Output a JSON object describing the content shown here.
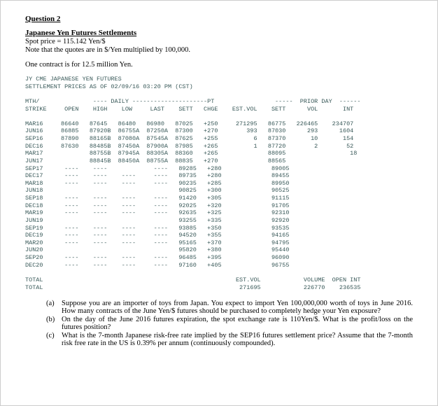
{
  "heading": "Question 2",
  "title": "Japanese Yen Futures Settlements",
  "spot_line": "Spot price = 115.142 Yen/$",
  "note_line": "Note that the quotes are in $/Yen multiplied by 100,000.",
  "contract_line": "One contract is for 12.5 million Yen.",
  "futures_header1": "JY CME JAPANESE YEN FUTURES",
  "futures_header2": "SETTLEMENT PRICES AS OF 02/09/16 03:20 PM (CST)",
  "col_header1": "MTH/               ---- DAILY ---------------------PT                 -----  PRIOR DAY  ------",
  "col_header2": "STRIKE     OPEN    HIGH    LOW     LAST    SETT   CHGE    EST.VOL    SETT      VOL       INT",
  "rows": [
    "MAR16     86640   87645   86480   86980   87025   +250     271295   86775   226465    234707",
    "JUN16     86885   87920B  86755A  87250A  87300   +270        393   87030      293      1604",
    "SEP16     87890   88165B  87080A  87545A  87625   +255          6   87370       10       154",
    "DEC16     87630   88485B  87450A  87900A  87985   +265          1   87720        2        52",
    "MAR17             88755B  87945A  88305A  88360   +265              88095                  18",
    "JUN17             88845B  88450A  88755A  88835   +270              88565",
    "SEP17      ----    ----             ----   89285   +280              89005",
    "DEC17      ----    ----    ----     ----   89735   +280              89455",
    "MAR18      ----    ----    ----     ----   90235   +285              89950",
    "JUN18                                      90825   +300              90525",
    "SEP18      ----    ----    ----     ----   91420   +305              91115",
    "DEC18      ----    ----    ----     ----   92025   +320              91705",
    "MAR19      ----    ----    ----     ----   92635   +325              92310",
    "JUN19                                      93255   +335              92920",
    "SEP19      ----    ----    ----     ----   93885   +350              93535",
    "DEC19      ----    ----    ----     ----   94520   +355              94165",
    "MAR20      ----    ----    ----     ----   95165   +370              94795",
    "JUN20                                      95820   +380              95440",
    "SEP20      ----    ----    ----     ----   96485   +395              96090",
    "DEC20      ----    ----    ----     ----   97160   +405              96755"
  ],
  "total1": "TOTAL                                                      EST.VOL            VOLUME  OPEN INT",
  "total2": "TOTAL                                                       271695            226770    236535",
  "questions": [
    {
      "label": "(a)",
      "text": "Suppose you are an importer of toys from Japan. You expect to import Yen 100,000,000 worth of toys in June 2016. How many contracts of the June Yen/$ futures should be purchased to completely hedge your Yen exposure?"
    },
    {
      "label": "(b)",
      "text": "On the day of the June 2016 futures expiration, the spot exchange rate is 110Yen/$. What is the profit/loss on the futures position?"
    },
    {
      "label": "(c)",
      "text": "What is the 7-month Japanese risk-free rate implied by the SEP16 futures settlement price? Assume that the 7-month risk free rate in the US is 0.39% per annum (continuously compounded)."
    }
  ]
}
